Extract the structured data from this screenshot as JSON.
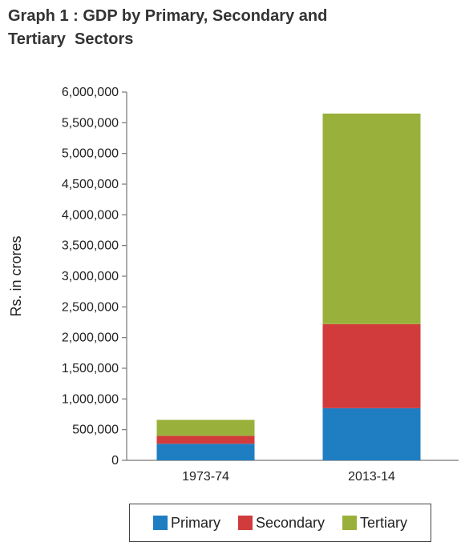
{
  "title_line1": "Graph 1 : GDP by Primary, Secondary and",
  "title_line2": "Tertiary  Sectors",
  "chart_data": {
    "type": "bar",
    "stacked": true,
    "categories": [
      "1973-74",
      "2013-14"
    ],
    "series": [
      {
        "name": "Primary",
        "color": "#1f7ec2",
        "values": [
          270000,
          850000
        ]
      },
      {
        "name": "Secondary",
        "color": "#d23b3b",
        "values": [
          130000,
          1370000
        ]
      },
      {
        "name": "Tertiary",
        "color": "#99b13b",
        "values": [
          260000,
          3430000
        ]
      }
    ],
    "ylabel": "Rs. in crores",
    "ylim": [
      0,
      6000000
    ],
    "yticks": [
      0,
      500000,
      1000000,
      1500000,
      2000000,
      2500000,
      3000000,
      3500000,
      4000000,
      4500000,
      5000000,
      5500000,
      6000000
    ],
    "ytick_labels": [
      "0",
      "500,000",
      "1,000,000",
      "1,500,000",
      "2,000,000",
      "2,500,000",
      "3,000,000",
      "3,500,000",
      "4,000,000",
      "4,500,000",
      "5,000,000",
      "5,500,000",
      "6,000,000"
    ],
    "grid": false,
    "legend_position": "bottom"
  }
}
